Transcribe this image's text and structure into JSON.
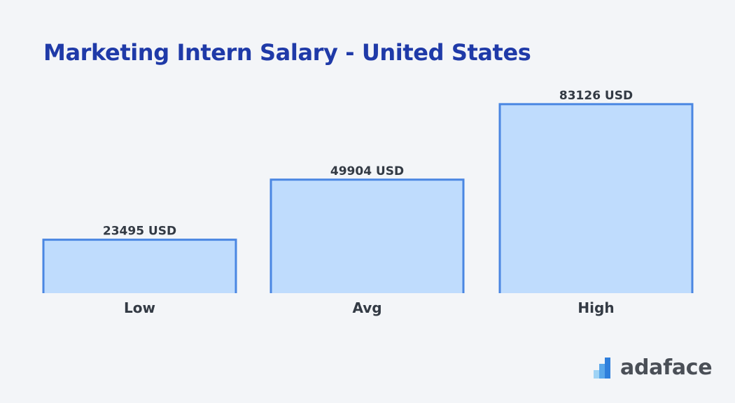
{
  "title": "Marketing Intern Salary - United States",
  "chart_data": {
    "type": "bar",
    "title": "Marketing Intern Salary - United States",
    "categories": [
      "Low",
      "Avg",
      "High"
    ],
    "values": [
      23495,
      49904,
      83126
    ],
    "value_labels": [
      "23495 USD",
      "49904 USD",
      "83126 USD"
    ],
    "unit": "USD",
    "ylim": [
      0,
      100000
    ],
    "grid": false,
    "legend": "none",
    "colors": {
      "bar_fill": "#bfdcfd",
      "bar_stroke": "#4a86e2",
      "label": "#333a44"
    }
  },
  "brand": {
    "name": "adaface",
    "icon": "adaface-logo-icon"
  }
}
